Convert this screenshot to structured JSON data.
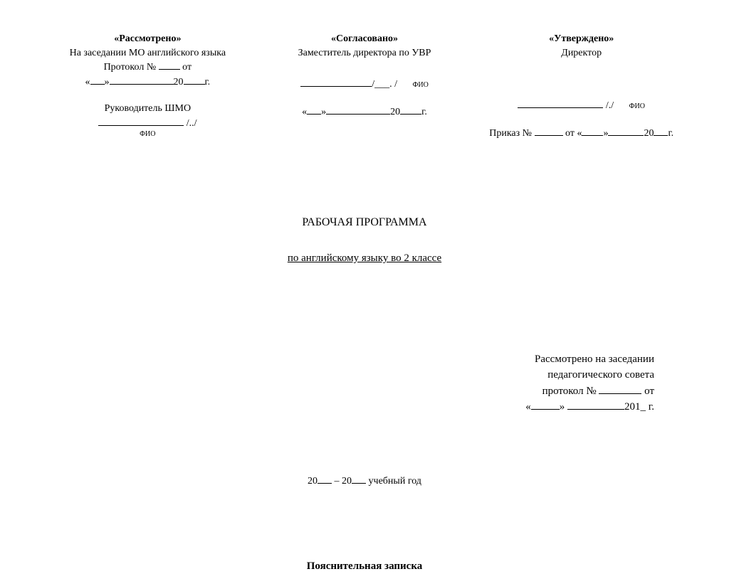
{
  "colors": {
    "page_bg": "#ffffff",
    "text": "#000000"
  },
  "typography": {
    "base_font": "Times New Roman",
    "base_size_pt": 11,
    "title_size_pt": 12,
    "fio_size_pt": 8
  },
  "header": {
    "left": {
      "status": "«Рассмотрено»",
      "line2": "На заседании МО английского языка",
      "protocol_prefix": "Протокол № ",
      "protocol_suffix": " от",
      "date_open_quote": "«",
      "date_close_quote": "»",
      "year_prefix": "20",
      "year_suffix": "г.",
      "role": "Руководитель ШМО",
      "sig_slash": " /../",
      "fio_label": "ФИО"
    },
    "middle": {
      "status": "«Согласовано»",
      "role": "Заместитель директора по УВР",
      "sig_slash": "/___. /",
      "fio_label": "ФИО",
      "date_open_quote": "«",
      "date_close_quote": "»",
      "year_prefix": "20",
      "year_suffix": "г."
    },
    "right": {
      "status": "«Утверждено»",
      "role": "Директор",
      "sig_slash": " /./",
      "fio_label": "ФИО",
      "order_prefix": "Приказ № ",
      "order_from": " от «",
      "order_close_quote": "»",
      "year_prefix": "20",
      "year_suffix": "г."
    }
  },
  "title": {
    "main": "РАБОЧАЯ ПРОГРАММА",
    "sub": "по английскому языку во 2 классе"
  },
  "meeting": {
    "line1": "Рассмотрено на заседании",
    "line2": "педагогического совета",
    "line3_prefix": "протокол  № ",
    "line3_suffix": "  от",
    "line4_open": "«",
    "line4_mid": "» ",
    "line4_year": "201_ г."
  },
  "year_line": {
    "prefix": "20",
    "dash": " – 20",
    "suffix": " учебный год"
  },
  "footer": {
    "explanatory_note": "Пояснительная записка"
  }
}
